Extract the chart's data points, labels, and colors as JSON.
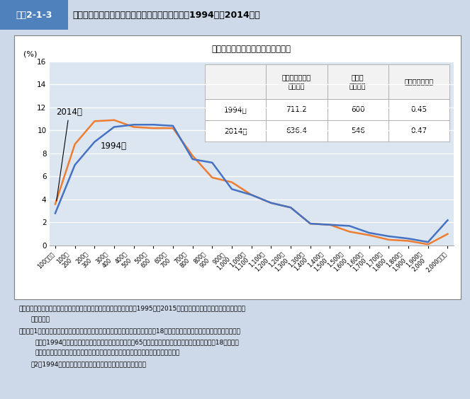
{
  "title_box_label": "図表2-1-3",
  "title_text": "高齢者世帯以外の世帯　世帯総所得金額の動向（1994年、2014年）",
  "subtitle": "所得金額階級別世帯の相対度数分布",
  "ylabel": "(%)",
  "ylim": [
    0,
    16
  ],
  "yticks": [
    0,
    2,
    4,
    6,
    8,
    10,
    12,
    14,
    16
  ],
  "categories": [
    "100万未満",
    "100～\n200",
    "200～\n300",
    "300～\n400",
    "400～\n500",
    "500～\n600",
    "600～\n700",
    "700～\n800",
    "800～\n900",
    "900～\n1,000",
    "1,000～\n1,100",
    "1,100～\n1,200",
    "1,200～\n1,300",
    "1,300～\n1,400",
    "1,400～\n1,500",
    "1,500～\n1,600",
    "1,600～\n1,700",
    "1,700～\n1,800",
    "1,800～\n1,900",
    "1,900～\n2,000",
    "2,000万以上"
  ],
  "data_1994": [
    2.8,
    7.0,
    9.0,
    10.3,
    10.5,
    10.5,
    10.4,
    7.5,
    7.2,
    4.9,
    4.4,
    3.7,
    3.3,
    1.9,
    1.8,
    1.7,
    1.1,
    0.8,
    0.6,
    0.3,
    2.2
  ],
  "data_2014": [
    3.6,
    8.8,
    10.8,
    10.9,
    10.3,
    10.2,
    10.2,
    7.8,
    5.9,
    5.5,
    4.4,
    3.7,
    3.3,
    1.9,
    1.8,
    1.2,
    0.9,
    0.5,
    0.4,
    0.1,
    1.0
  ],
  "color_1994": "#4472c4",
  "color_2014": "#ed7d31",
  "label_1994": "1994年",
  "label_2014": "2014年",
  "col_header0": "",
  "col_header1": "平均総所得金額\n（万円）",
  "col_header2": "中央値\n（万円）",
  "col_header3": "四分位分散係数",
  "row1_label": "1994年",
  "row1_v1": "711.2",
  "row1_v2": "600",
  "row1_v3": "0.45",
  "row2_label": "2014年",
  "row2_v1": "636.4",
  "row2_v2": "546",
  "row2_v3": "0.47",
  "source_line1": "資料：厉生労働省政策統括官付世帯統計室　「国民生活基礎調査」（1995年、2015年）より厉生労働省政策統括官付政策評",
  "source_line2": "価官室作成",
  "note1": "（注）　1．「高齢者世帯」は、６５歳以上の者のみで構成するか、又はこれに18歳未満の未婚の子が加わった世帯をいう。た",
  "note1b": "だし、1994年の数値については、「高齢者世帯」を「65歳以上の者のみで構成するか、又はこれに18歳未満の",
  "note1c": "者が加わった世帯」とし、「高齢者世帯以外の世帯」はこれ以外の世帯として集計。",
  "note2": "　2．1994年の数値については、兵庫県を除いたものである。",
  "title_bar_color": "#4f81bd",
  "title_label_bg": "#4f81bd",
  "fig_bg": "#cdd9e8",
  "plot_bg": "#dce6f1",
  "border_color": "#7f7f7f"
}
